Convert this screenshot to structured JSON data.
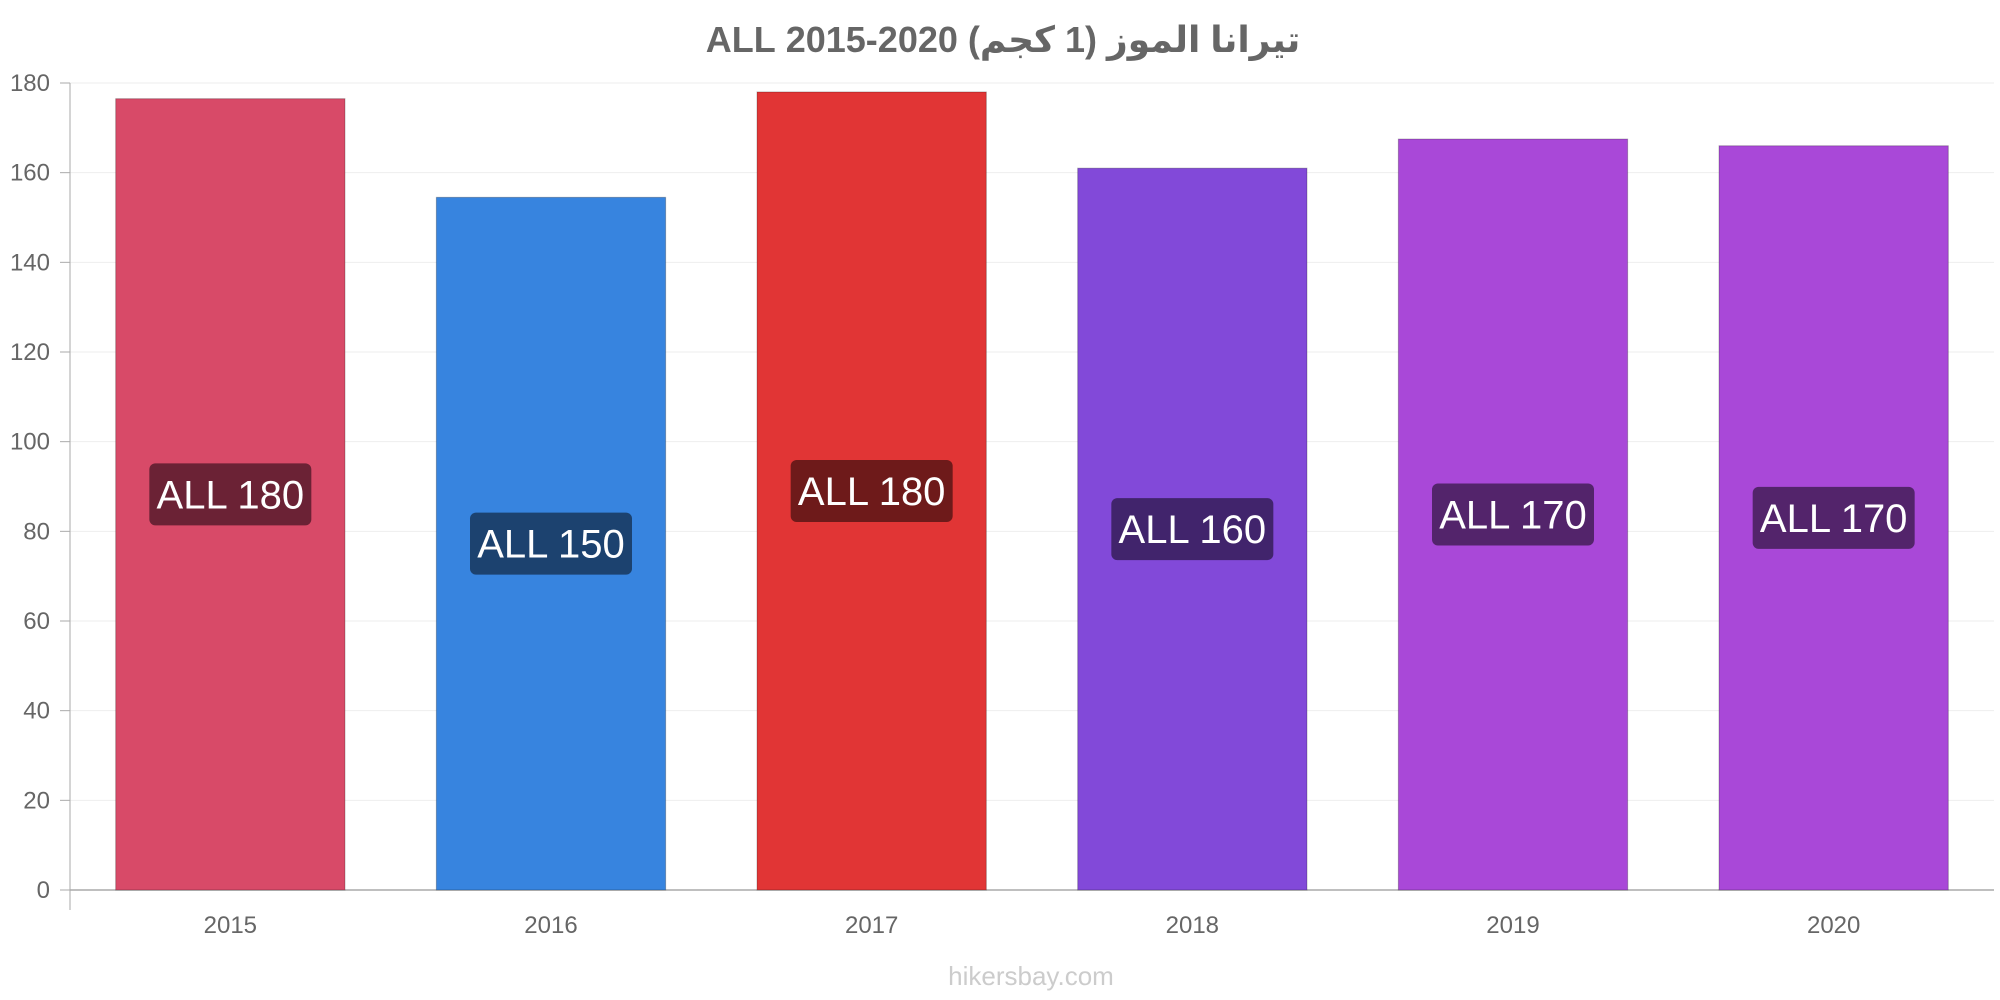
{
  "chart_data": {
    "type": "bar",
    "title": "تيرانا الموز (1 كجم) 2020-2015 ALL",
    "xlabel": "",
    "ylabel": "",
    "categories": [
      "2015",
      "2016",
      "2017",
      "2018",
      "2019",
      "2020"
    ],
    "values": [
      176.5,
      154.5,
      178,
      161,
      167.5,
      166
    ],
    "data_labels": [
      "ALL 180",
      "ALL 150",
      "ALL 180",
      "ALL 160",
      "ALL 170",
      "ALL 170"
    ],
    "ylim": [
      0,
      180
    ],
    "yticks": [
      0,
      20,
      40,
      60,
      80,
      100,
      120,
      140,
      160,
      180
    ],
    "colors": [
      "#d84a68",
      "#3784df",
      "#e13535",
      "#8249d9",
      "#a948d8",
      "#a948d8"
    ],
    "label_bg_colors": [
      "#6b2235",
      "#1c426f",
      "#6e1a1a",
      "#41246c",
      "#53246b",
      "#53246b"
    ],
    "grid": true,
    "legend": "none"
  },
  "watermark": "hikersbay.com"
}
